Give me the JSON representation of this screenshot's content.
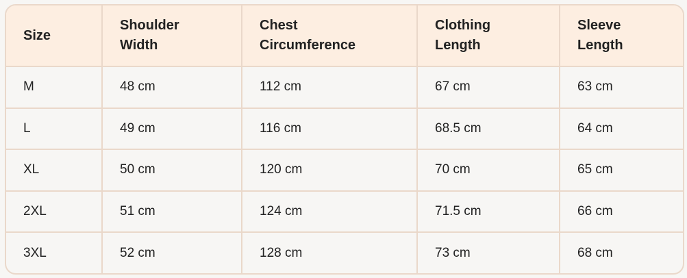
{
  "headers": [
    "Size",
    "Shoulder Width",
    "Chest Circumference",
    "Clothing Length",
    "Sleeve Length"
  ],
  "header_lines": [
    [
      "Size"
    ],
    [
      "Shoulder",
      "Width"
    ],
    [
      "Chest",
      "Circumference"
    ],
    [
      "Clothing",
      "Length"
    ],
    [
      "Sleeve",
      "Length"
    ]
  ],
  "rows": [
    [
      "M",
      "48 cm",
      "112 cm",
      "67 cm",
      "63 cm"
    ],
    [
      "L",
      "49 cm",
      "116 cm",
      "68.5 cm",
      "64 cm"
    ],
    [
      "XL",
      "50 cm",
      "120 cm",
      "70 cm",
      "65 cm"
    ],
    [
      "2XL",
      "51 cm",
      "124 cm",
      "71.5 cm",
      "66 cm"
    ],
    [
      "3XL",
      "52 cm",
      "128 cm",
      "73 cm",
      "68 cm"
    ]
  ],
  "colors": {
    "header_bg": "#fdeee1",
    "border": "#ead8ca",
    "body_bg": "#f7f6f4"
  }
}
